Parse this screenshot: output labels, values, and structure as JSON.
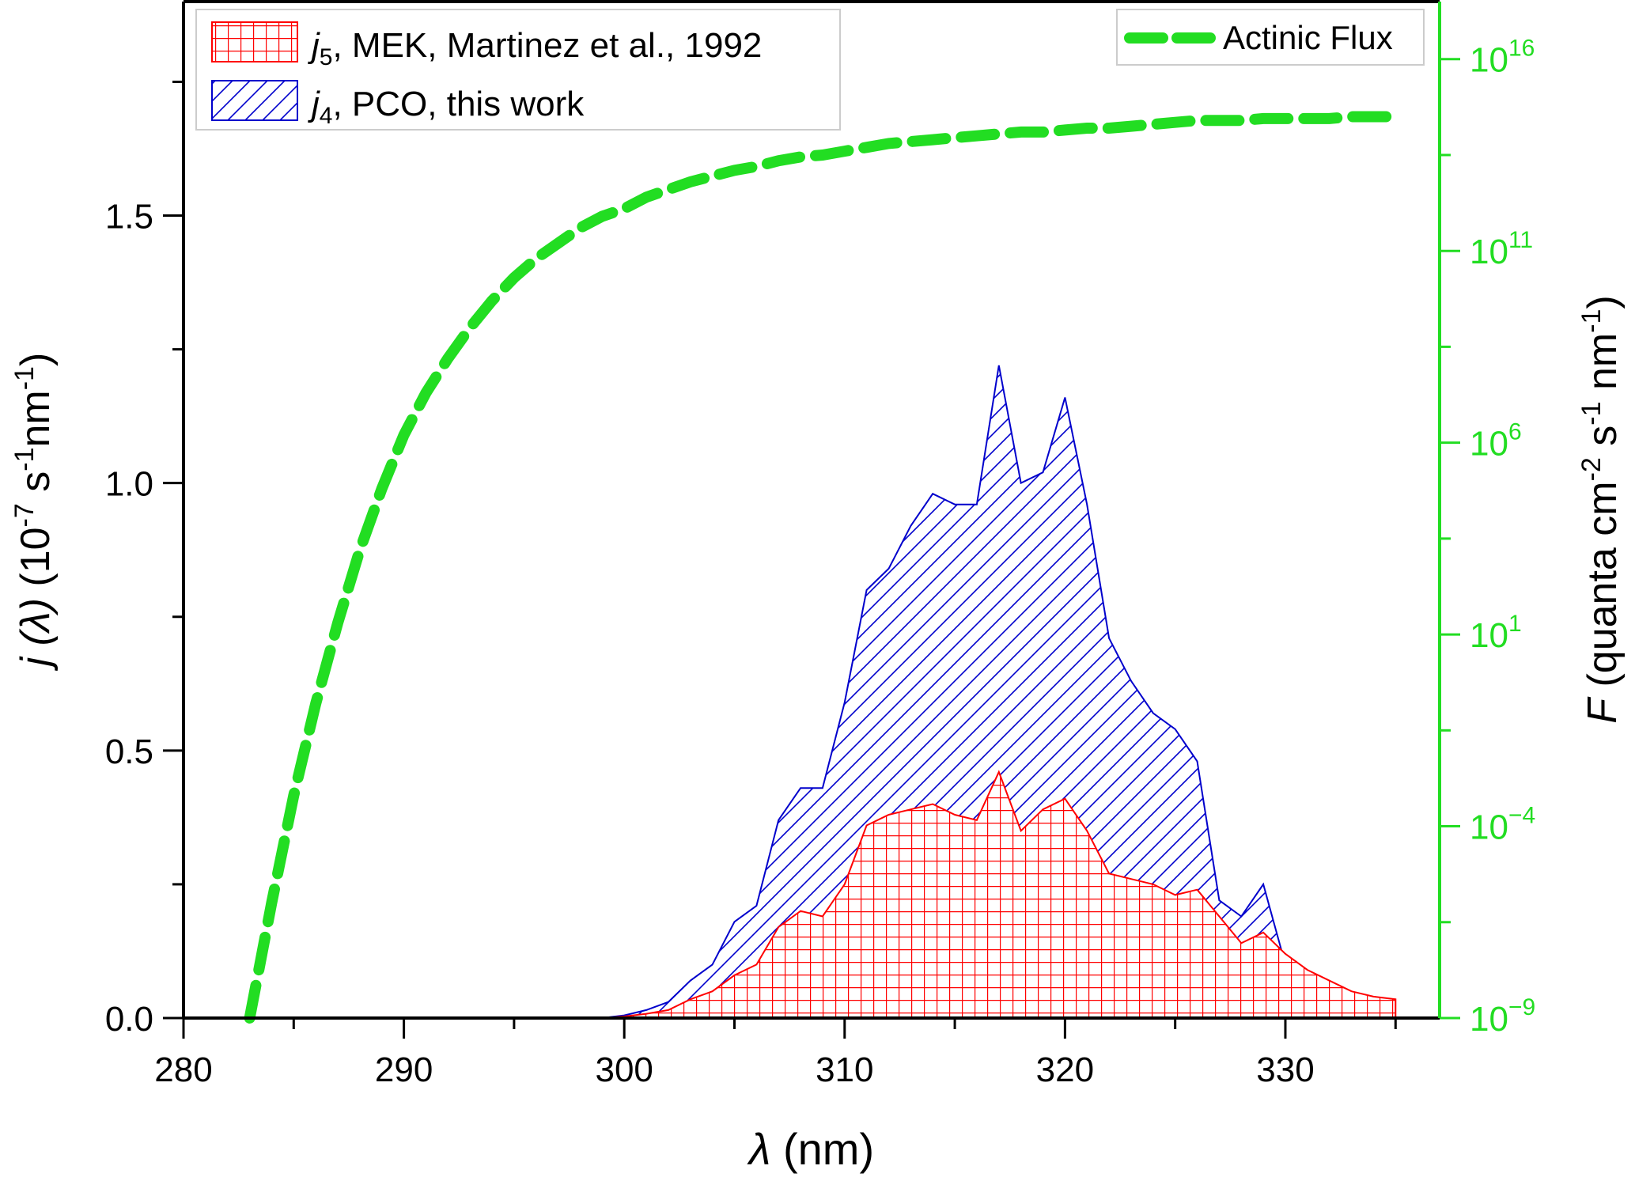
{
  "chart_data": {
    "type": "area",
    "xlabel": "λ (nm)",
    "ylabel_left": "j (λ) (10⁻⁷ s⁻¹nm⁻¹)",
    "ylabel_right": "F (quanta cm⁻² s⁻¹ nm⁻¹)",
    "xlim": [
      280,
      337
    ],
    "ylim": [
      0,
      1.9
    ],
    "y2_scale": "log",
    "y2_exp_range": [
      -9,
      17.5
    ],
    "grid": false,
    "legend_placement": "top-left",
    "legend2_placement": "top-right",
    "x_ticks": [
      "280",
      "290",
      "300",
      "310",
      "320",
      "330"
    ],
    "y_ticks": [
      "0.0",
      "0.5",
      "1.0",
      "1.5"
    ],
    "y2_tick_exponents": [
      "−9",
      "−4",
      "1",
      "6",
      "11",
      "16"
    ],
    "series": [
      {
        "name": "PCO, this work",
        "legend_sub": "4",
        "color": "#0000cc",
        "fill": "hatch-diagonal",
        "x": [
          299,
          300,
          301,
          302,
          303,
          304,
          305,
          306,
          307,
          308,
          309,
          310,
          311,
          312,
          313,
          314,
          315,
          316,
          317,
          318,
          319,
          320,
          321,
          322,
          323,
          324,
          325,
          326,
          327,
          328,
          329,
          330
        ],
        "y": [
          0.0,
          0.005,
          0.015,
          0.03,
          0.07,
          0.1,
          0.18,
          0.21,
          0.37,
          0.43,
          0.43,
          0.59,
          0.8,
          0.84,
          0.92,
          0.98,
          0.96,
          0.96,
          1.22,
          1.0,
          1.02,
          1.16,
          0.96,
          0.71,
          0.63,
          0.57,
          0.54,
          0.48,
          0.22,
          0.19,
          0.25,
          0.1
        ]
      },
      {
        "name": "MEK, Martinez et al., 1992",
        "legend_sub": "5",
        "color": "#ff0000",
        "fill": "hatch-grid",
        "x": [
          299,
          300,
          301,
          302,
          303,
          304,
          305,
          306,
          307,
          308,
          309,
          310,
          311,
          312,
          313,
          314,
          315,
          316,
          317,
          318,
          319,
          320,
          321,
          322,
          323,
          324,
          325,
          326,
          327,
          328,
          329,
          330,
          331,
          332,
          333,
          334,
          335
        ],
        "y": [
          0.0,
          0.003,
          0.008,
          0.015,
          0.035,
          0.05,
          0.08,
          0.1,
          0.17,
          0.2,
          0.19,
          0.25,
          0.36,
          0.38,
          0.39,
          0.4,
          0.38,
          0.37,
          0.46,
          0.35,
          0.39,
          0.41,
          0.35,
          0.27,
          0.26,
          0.25,
          0.23,
          0.24,
          0.19,
          0.14,
          0.16,
          0.12,
          0.09,
          0.07,
          0.05,
          0.04,
          0.035
        ]
      },
      {
        "name": "Actinic Flux",
        "color": "#22dd22",
        "style": "dashed",
        "axis": "right-log",
        "x": [
          283,
          284,
          285,
          286,
          287,
          288,
          289,
          290,
          291,
          292,
          293,
          294,
          295,
          296,
          297,
          298,
          299,
          300,
          301,
          302,
          303,
          304,
          305,
          306,
          307,
          308,
          309,
          310,
          311,
          312,
          313,
          314,
          315,
          316,
          317,
          318,
          319,
          320,
          321,
          322,
          323,
          324,
          325,
          326,
          327,
          328,
          329,
          330,
          331,
          332,
          333,
          334,
          335
        ],
        "log10_y": [
          -9.0,
          -6.0,
          -3.2,
          -0.8,
          1.3,
          3.2,
          4.8,
          6.2,
          7.3,
          8.2,
          9.0,
          9.7,
          10.3,
          10.8,
          11.2,
          11.6,
          11.9,
          12.1,
          12.4,
          12.6,
          12.8,
          12.95,
          13.1,
          13.2,
          13.35,
          13.45,
          13.5,
          13.6,
          13.7,
          13.8,
          13.85,
          13.9,
          13.95,
          14.0,
          14.05,
          14.1,
          14.1,
          14.15,
          14.2,
          14.2,
          14.25,
          14.3,
          14.35,
          14.4,
          14.4,
          14.4,
          14.45,
          14.45,
          14.45,
          14.45,
          14.5,
          14.5,
          14.5
        ]
      }
    ]
  },
  "legend": {
    "j_symbol": "j",
    "item1_text": ", MEK, Martinez et al., 1992",
    "item2_text": ", PCO, this work",
    "flux_label": "Actinic Flux"
  },
  "axes": {
    "x_title_symbol": "λ",
    "x_title_rest": " (nm)",
    "y_title_j": "j",
    "y_title_lambda": "(λ)",
    "y_title_unit_a": " (10",
    "y_title_exp1": "-7",
    "y_title_unit_b": " s",
    "y_title_exp2": "-1",
    "y_title_unit_c": "nm",
    "y_title_exp3": "-1",
    "y_title_close": ")",
    "y2_title_F": "F",
    "y2_title_a": " (quanta cm",
    "y2_title_exp1": "-2",
    "y2_title_b": " s",
    "y2_title_exp2": "-1",
    "y2_title_c": " nm",
    "y2_title_exp3": "-1",
    "y2_title_close": ")",
    "y2_tick_base": "10"
  }
}
